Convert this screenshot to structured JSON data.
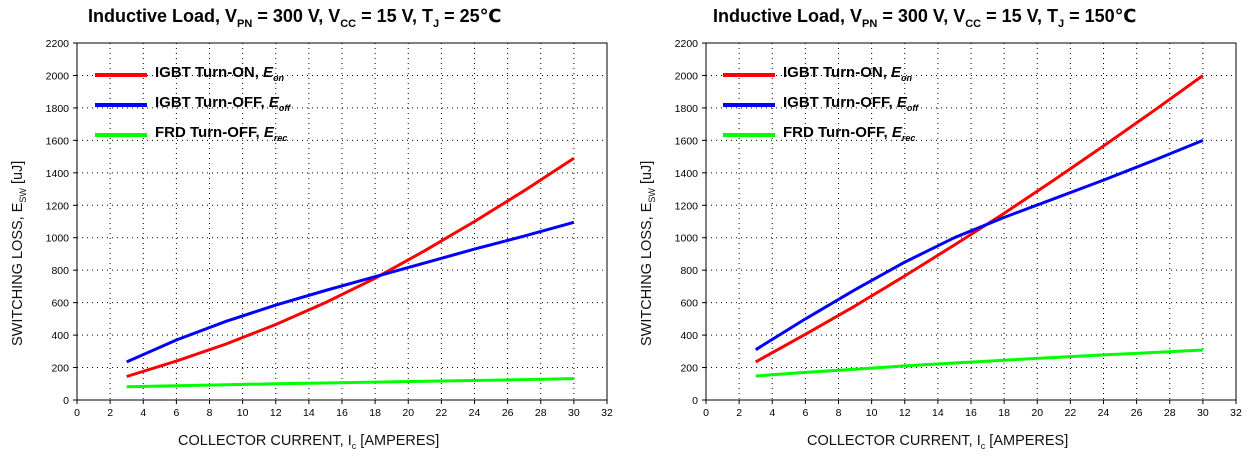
{
  "chart_data": [
    {
      "type": "line",
      "title": {
        "prefix": "Inductive Load, V",
        "sub1": "PN",
        "mid1": " = 300 V, V",
        "sub2": "CC",
        "mid2": " = 15 V, T",
        "sub3": "J",
        "suffix": " = 25℃"
      },
      "xlabel": {
        "main": "COLLECTOR CURRENT, I",
        "sub": "c",
        "unit": " [AMPERES]"
      },
      "ylabel": {
        "main": "SWITCHING LOSS, E",
        "sub": "SW",
        "unit": " [uJ]"
      },
      "xlim": [
        0,
        32
      ],
      "ylim": [
        0,
        2200
      ],
      "xticks": [
        "0",
        "2",
        "4",
        "6",
        "8",
        "10",
        "12",
        "14",
        "16",
        "18",
        "20",
        "22",
        "24",
        "26",
        "28",
        "30",
        "32"
      ],
      "yticks": [
        "0",
        "200",
        "400",
        "600",
        "800",
        "1000",
        "1200",
        "1400",
        "1600",
        "1800",
        "2000",
        "2200"
      ],
      "grid": true,
      "legend_position": "top-left",
      "series": [
        {
          "name": "IGBT Turn-ON, ",
          "sym": "E",
          "sub": "on",
          "color": "#ff0000",
          "x": [
            3,
            6,
            9,
            12,
            15,
            18,
            21,
            24,
            27,
            30
          ],
          "y": [
            145,
            240,
            345,
            465,
            600,
            750,
            920,
            1100,
            1290,
            1490
          ]
        },
        {
          "name": "IGBT Turn-OFF, ",
          "sym": "E",
          "sub": "off",
          "color": "#0000ff",
          "x": [
            3,
            6,
            9,
            12,
            15,
            18,
            21,
            24,
            27,
            30
          ],
          "y": [
            235,
            370,
            485,
            585,
            675,
            760,
            845,
            930,
            1010,
            1095
          ]
        },
        {
          "name": "FRD Turn-OFF, ",
          "sym": "E",
          "sub": "rec",
          "color": "#00ff00",
          "x": [
            3,
            6,
            9,
            12,
            15,
            18,
            21,
            24,
            27,
            30
          ],
          "y": [
            82,
            88,
            94,
            100,
            105,
            110,
            115,
            120,
            126,
            132
          ]
        }
      ]
    },
    {
      "type": "line",
      "title": {
        "prefix": "Inductive Load, V",
        "sub1": "PN",
        "mid1": " = 300 V, V",
        "sub2": "CC",
        "mid2": " = 15 V, T",
        "sub3": "J",
        "suffix": " = 150℃"
      },
      "xlabel": {
        "main": "COLLECTOR CURRENT, I",
        "sub": "c",
        "unit": " [AMPERES]"
      },
      "ylabel": {
        "main": "SWITCHING LOSS, E",
        "sub": "SW",
        "unit": " [uJ]"
      },
      "xlim": [
        0,
        32
      ],
      "ylim": [
        0,
        2200
      ],
      "xticks": [
        "0",
        "2",
        "4",
        "6",
        "8",
        "10",
        "12",
        "14",
        "16",
        "18",
        "20",
        "22",
        "24",
        "26",
        "28",
        "30",
        "32"
      ],
      "yticks": [
        "0",
        "200",
        "400",
        "600",
        "800",
        "1000",
        "1200",
        "1400",
        "1600",
        "1800",
        "2000",
        "2200"
      ],
      "grid": true,
      "legend_position": "top-left",
      "series": [
        {
          "name": "IGBT Turn-ON, ",
          "sym": "E",
          "sub": "on",
          "color": "#ff0000",
          "x": [
            3,
            6,
            9,
            12,
            15,
            18,
            21,
            24,
            27,
            30
          ],
          "y": [
            235,
            405,
            580,
            765,
            955,
            1150,
            1355,
            1565,
            1780,
            2000
          ]
        },
        {
          "name": "IGBT Turn-OFF, ",
          "sym": "E",
          "sub": "off",
          "color": "#0000ff",
          "x": [
            3,
            6,
            9,
            12,
            15,
            18,
            21,
            24,
            27,
            30
          ],
          "y": [
            310,
            500,
            680,
            850,
            1000,
            1125,
            1240,
            1355,
            1475,
            1600
          ]
        },
        {
          "name": "FRD Turn-OFF, ",
          "sym": "E",
          "sub": "rec",
          "color": "#00ff00",
          "x": [
            3,
            6,
            9,
            12,
            15,
            18,
            21,
            24,
            27,
            30
          ],
          "y": [
            148,
            170,
            190,
            210,
            228,
            245,
            262,
            278,
            293,
            308
          ]
        }
      ]
    }
  ]
}
